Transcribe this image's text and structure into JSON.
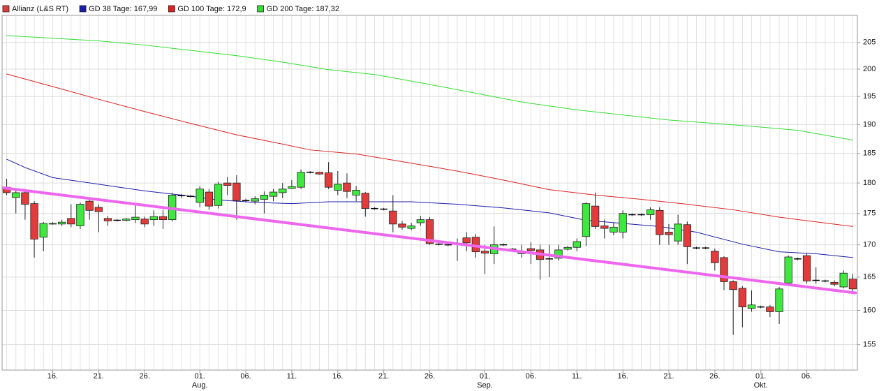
{
  "chart_data": {
    "type": "candlestick",
    "log_y": true,
    "grid": true,
    "legend": "top-left",
    "ylim": [
      151.4,
      210.2
    ],
    "yticks": [
      155,
      160,
      165,
      170,
      175,
      180,
      185,
      190,
      195,
      200,
      205
    ],
    "categories": [
      null,
      null,
      null,
      null,
      null,
      "16.",
      null,
      null,
      null,
      null,
      "21.",
      null,
      null,
      null,
      null,
      "26.",
      null,
      null,
      null,
      null,
      null,
      "01.",
      null,
      null,
      null,
      null,
      "06.",
      null,
      null,
      null,
      null,
      "11.",
      null,
      null,
      null,
      null,
      "16.",
      null,
      null,
      null,
      null,
      "21.",
      null,
      null,
      null,
      null,
      "26.",
      null,
      null,
      null,
      null,
      null,
      "01.",
      null,
      null,
      null,
      null,
      "06.",
      null,
      null,
      null,
      null,
      "11.",
      null,
      null,
      null,
      null,
      "16.",
      null,
      null,
      null,
      null,
      "21.",
      null,
      null,
      null,
      null,
      "26.",
      null,
      null,
      null,
      null,
      "01.",
      null,
      null,
      null,
      null,
      "06.",
      null,
      null,
      null,
      null,
      null
    ],
    "month_labels": {
      "positions": [
        21,
        52,
        82
      ],
      "labels": [
        "Aug.",
        "Sep.",
        "Okt."
      ]
    },
    "candles": {
      "name": "Allianz (L&S RT)",
      "color": "#e23b3b",
      "up_color": "#3ee83e",
      "down_color": "#e23b3b",
      "flat_color": "#000000",
      "open": [
        179.3,
        177.6,
        178.4,
        176.6,
        171.2,
        173.3,
        173.3,
        174.2,
        173,
        177,
        176,
        174.2,
        173.9,
        173.9,
        174,
        174.1,
        174,
        174.5,
        174,
        177.9,
        177.8,
        176.8,
        178.5,
        176.3,
        180,
        180,
        177.1,
        177,
        177.3,
        177.8,
        178.4,
        179.1,
        179.3,
        181.8,
        181.8,
        181.7,
        178.8,
        180,
        178,
        178.3,
        175.8,
        175.7,
        175.4,
        173.3,
        172.6,
        173.5,
        174,
        170.1,
        170,
        170.1,
        171.1,
        171.2,
        169,
        168.6,
        170,
        169.3,
        168.6,
        169.4,
        169.2,
        167.8,
        167.9,
        169.3,
        169.6,
        171.3,
        176.2,
        173,
        172,
        172,
        174.8,
        174.8,
        174.8,
        175.5,
        172,
        170.6,
        173.2,
        169.5,
        169.5,
        169,
        168,
        164.3,
        163.3,
        160.3,
        160.5,
        160.5,
        159.8,
        164.1,
        167.8,
        168.3,
        164.5,
        164.4,
        164.2,
        163.5,
        164.7
      ],
      "high": [
        180.7,
        179,
        179,
        177,
        173.6,
        173.6,
        174,
        176.5,
        176.8,
        177.5,
        176.5,
        174.6,
        174.1,
        174.3,
        176.5,
        174.5,
        175.5,
        175.6,
        178.4,
        178.2,
        178,
        179.5,
        179,
        180.2,
        181,
        181.3,
        177.4,
        177.8,
        178.6,
        179,
        180,
        180.5,
        182.3,
        182,
        181.9,
        183.5,
        182,
        181.6,
        179.5,
        178.5,
        176,
        175.9,
        178,
        173.8,
        173.5,
        174.6,
        174.4,
        170.3,
        170.2,
        171,
        172,
        171.7,
        170,
        172.9,
        170.2,
        169.5,
        170,
        170.4,
        170,
        170,
        170,
        169.8,
        171,
        176.8,
        178.4,
        174,
        173.5,
        175.5,
        175,
        175,
        176,
        176,
        173.3,
        174.8,
        173.7,
        169.7,
        169.7,
        169.4,
        168.2,
        164.5,
        163.6,
        163,
        160.7,
        160.8,
        163.5,
        168.3,
        168,
        168.6,
        166.5,
        164.6,
        164.5,
        166,
        165.5
      ],
      "low": [
        178,
        175,
        174,
        168,
        169,
        173.2,
        173,
        172.8,
        172.5,
        174,
        172,
        173,
        173.7,
        173.7,
        173.5,
        172.8,
        173,
        172.5,
        173.7,
        177.5,
        177.6,
        176,
        175.6,
        175.8,
        178,
        174,
        176.8,
        176.5,
        175,
        177,
        177.5,
        179,
        179,
        181.6,
        181.4,
        179,
        178,
        177.5,
        177,
        174.5,
        175.6,
        175.5,
        172,
        172.4,
        172.3,
        173,
        170,
        169.9,
        169.8,
        167.5,
        169,
        168,
        165.5,
        167,
        169.8,
        169.1,
        168,
        167,
        164.6,
        165,
        167.5,
        169.1,
        169,
        169.8,
        172.5,
        171,
        171.5,
        171,
        174.6,
        174.6,
        174,
        170,
        170,
        170,
        167,
        169.3,
        169.3,
        166,
        163,
        156.4,
        157.5,
        159.8,
        160.3,
        159,
        158,
        163.7,
        167.6,
        164,
        164,
        164.2,
        163.6,
        163.3,
        162.8
      ],
      "close": [
        178.4,
        178.4,
        176.5,
        170.9,
        173.4,
        173.4,
        173.6,
        173.3,
        176.5,
        175.5,
        175.3,
        173.8,
        173.9,
        174.1,
        174.4,
        173.3,
        174.5,
        174,
        178,
        177.9,
        177.8,
        179,
        176.2,
        179.8,
        179.6,
        177.1,
        177.1,
        177.4,
        178,
        178.5,
        179,
        179.4,
        181.8,
        181.8,
        181.5,
        179.3,
        179.8,
        178.6,
        178.8,
        175.8,
        175.8,
        175.7,
        173.3,
        172.8,
        173,
        174,
        170.2,
        170.1,
        170,
        170.1,
        170.3,
        168.9,
        168.7,
        170,
        170,
        169.3,
        168.9,
        169.1,
        167.7,
        167.8,
        169.2,
        169.6,
        170.5,
        176.6,
        172.9,
        172.6,
        172.8,
        175,
        174.8,
        174.8,
        175.6,
        171.6,
        171.6,
        173.3,
        169.7,
        169.5,
        169.5,
        167.2,
        164.3,
        163.1,
        160.5,
        160.8,
        160.5,
        159.8,
        163.2,
        168.1,
        167.8,
        164.4,
        164.5,
        164.4,
        163.9,
        165.6,
        163.2
      ]
    },
    "series": [
      {
        "name": "GD 38 Tage: 167,99",
        "color": "#1c1caa",
        "x": [
          0,
          2,
          5,
          10,
          15,
          19,
          23,
          27,
          31,
          35,
          44,
          49,
          54,
          59,
          63,
          67,
          71,
          75,
          80,
          84,
          88,
          92
        ],
        "values": [
          184.0,
          182.6,
          180.9,
          179.8,
          178.7,
          178.0,
          177.2,
          176.8,
          176.6,
          176.9,
          176.9,
          176.5,
          175.9,
          175.1,
          173.9,
          173.4,
          172.9,
          172.0,
          170.1,
          168.9,
          168.6,
          168.0
        ]
      },
      {
        "name": "GD 100 Tage: 172,9",
        "color": "#dd2222",
        "x": [
          0,
          5,
          10,
          15,
          20,
          25,
          30,
          33,
          38,
          43,
          49,
          54,
          59,
          64,
          69,
          74,
          79,
          84,
          92
        ],
        "values": [
          199.1,
          196.8,
          194.5,
          192.3,
          190.2,
          188.2,
          186.6,
          185.6,
          184.9,
          183.6,
          182.0,
          180.5,
          178.9,
          178.0,
          177.3,
          176.5,
          175.6,
          174.4,
          172.9
        ]
      },
      {
        "name": "GD 200 Tage: 187,32",
        "color": "#33dd33",
        "x": [
          0,
          5,
          10,
          15,
          20,
          25,
          30,
          35,
          40,
          45,
          51,
          56,
          62,
          67,
          72,
          77,
          81,
          86,
          92
        ],
        "values": [
          206.3,
          205.8,
          205.3,
          204.5,
          203.5,
          202.5,
          201.3,
          199.9,
          199.0,
          197.5,
          195.6,
          194.0,
          192.6,
          191.7,
          190.8,
          190.2,
          189.7,
          189.0,
          187.3
        ]
      }
    ],
    "trendline": {
      "color": "#ee66ee",
      "x": [
        -0.4,
        92.3
      ],
      "values": [
        179.2,
        162.6
      ]
    }
  }
}
